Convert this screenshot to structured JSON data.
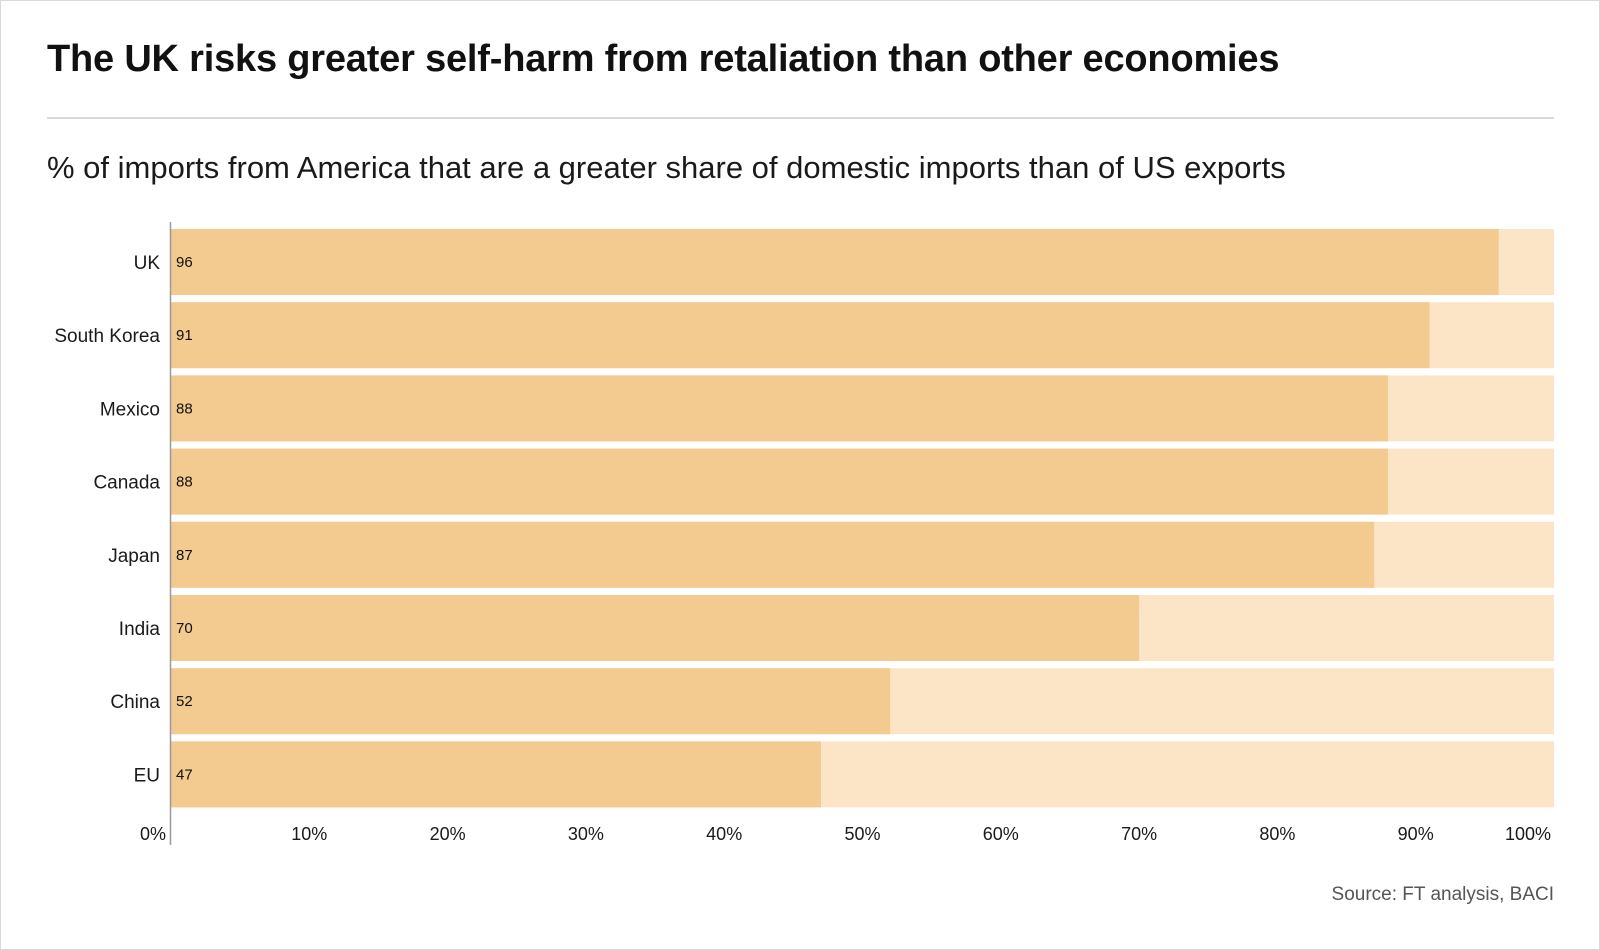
{
  "header": {
    "title": "The UK risks greater self-harm from retaliation than other economies",
    "subtitle": "% of imports from America that are a greater share of domestic imports than of US exports"
  },
  "footer": {
    "source": "Source: FT analysis, BACI"
  },
  "colors": {
    "bar": "#f3ca8f",
    "track": "#fce5c6",
    "axis": "#999999",
    "label": "#1a1a1a",
    "value_label": "#111111"
  },
  "chart_data": {
    "type": "bar",
    "orientation": "horizontal",
    "categories": [
      "UK",
      "South Korea",
      "Mexico",
      "Canada",
      "Japan",
      "India",
      "China",
      "EU"
    ],
    "values": [
      96,
      91,
      88,
      88,
      87,
      70,
      52,
      47
    ],
    "data_labels": [
      "96",
      "91",
      "88",
      "88",
      "87",
      "70",
      "52",
      "47"
    ],
    "xlim": [
      0,
      100
    ],
    "x_ticks": [
      0,
      10,
      20,
      30,
      40,
      50,
      60,
      70,
      80,
      90,
      100
    ],
    "x_tick_labels": [
      "0%",
      "10%",
      "20%",
      "30%",
      "40%",
      "50%",
      "60%",
      "70%",
      "80%",
      "90%",
      "100%"
    ],
    "background_track": true,
    "grid": false,
    "legend": "none"
  }
}
